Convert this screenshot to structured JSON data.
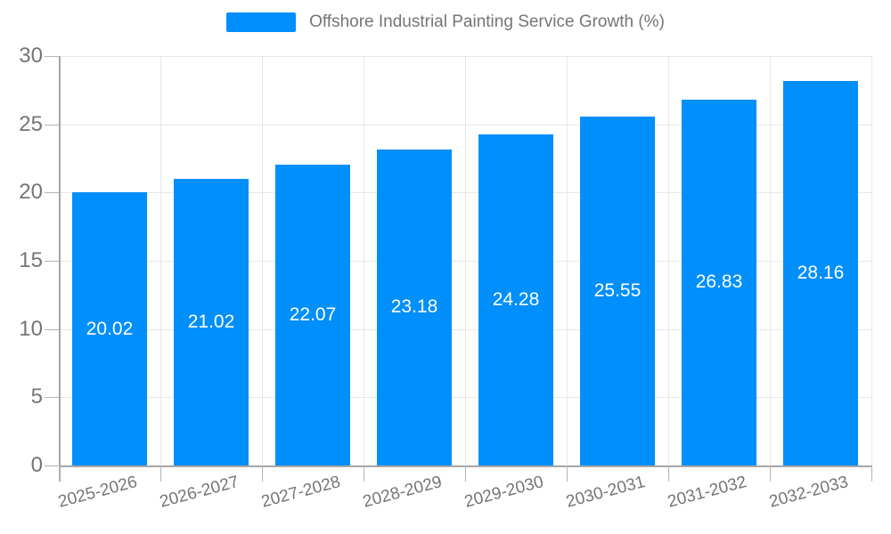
{
  "chart_data": {
    "type": "bar",
    "title": "",
    "legend": "Offshore Industrial Painting Service Growth (%)",
    "legend_position": "top",
    "categories": [
      "2025-2026",
      "2026-2027",
      "2027-2028",
      "2028-2029",
      "2029-2030",
      "2030-2031",
      "2031-2032",
      "2032-2033"
    ],
    "values": [
      20.02,
      21.02,
      22.07,
      23.18,
      24.28,
      25.55,
      26.83,
      28.16
    ],
    "value_labels": [
      "20.02",
      "21.02",
      "22.07",
      "23.18",
      "24.28",
      "25.55",
      "26.83",
      "28.16"
    ],
    "xlabel": "",
    "ylabel": "",
    "ylim": [
      0,
      30
    ],
    "yticks": [
      0,
      5,
      10,
      15,
      20,
      25,
      30
    ],
    "ytick_labels": [
      "0",
      "5",
      "10",
      "15",
      "20",
      "25",
      "30"
    ],
    "grid": true,
    "colors": {
      "bar": "#008FFB",
      "bar_value_text": "#ffffff",
      "axis_text": "#757575",
      "gridline": "#e7e7e7",
      "axis_line": "#a6a6a6",
      "background": "#ffffff"
    }
  }
}
